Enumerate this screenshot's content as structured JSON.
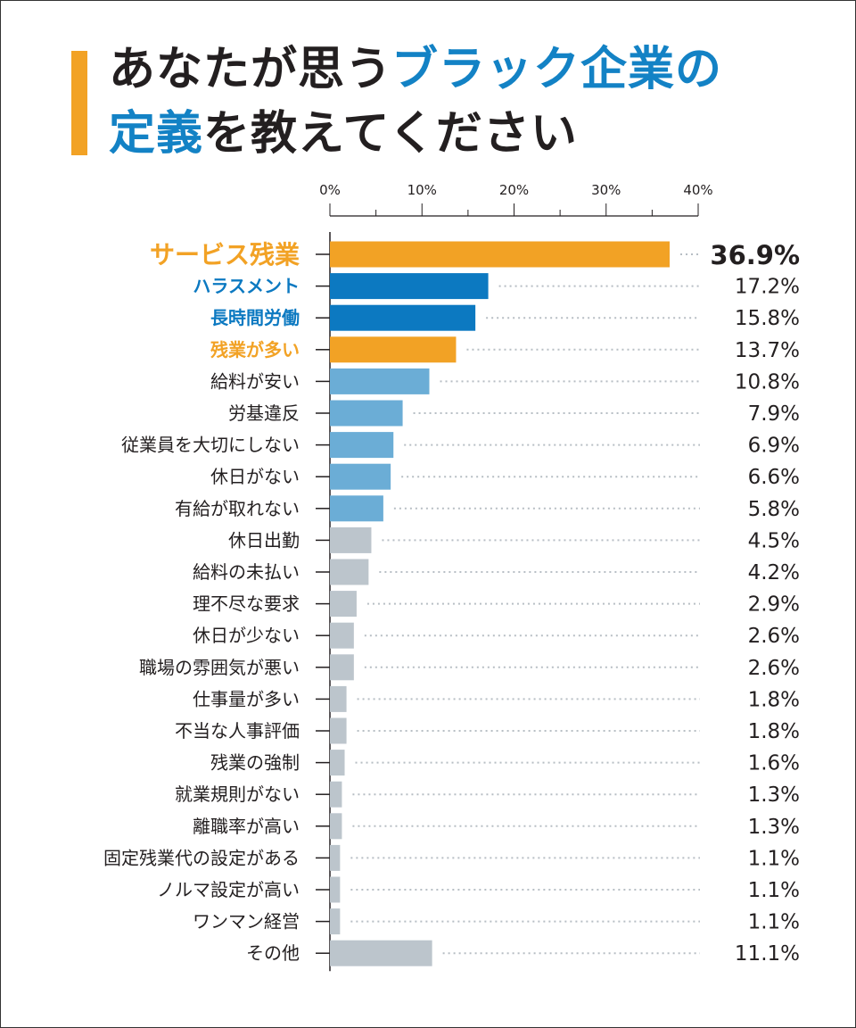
{
  "title": {
    "line1_part1": "あなたが思う",
    "line1_part2": "ブラック企業の",
    "line2_part1": "定義",
    "line2_part2": "を教えてください"
  },
  "colors": {
    "orange": "#f2a225",
    "darkblue": "#0c79c1",
    "lightblue": "#6badd6",
    "gray": "#bcc5cc",
    "text": "#231f20"
  },
  "chart_data": {
    "type": "bar",
    "orientation": "horizontal",
    "title": "あなたが思うブラック企業の定義を教えてください",
    "xlim": [
      0,
      40
    ],
    "xticks": [
      "0%",
      "10%",
      "20%",
      "30%",
      "40%"
    ],
    "categories": [
      "サービス残業",
      "ハラスメント",
      "長時間労働",
      "残業が多い",
      "給料が安い",
      "労基違反",
      "従業員を大切にしない",
      "休日がない",
      "有給が取れない",
      "休日出勤",
      "給料の未払い",
      "理不尽な要求",
      "休日が少ない",
      "職場の雰囲気が悪い",
      "仕事量が多い",
      "不当な人事評価",
      "残業の強制",
      "就業規則がない",
      "離職率が高い",
      "固定残業代の設定がある",
      "ノルマ設定が高い",
      "ワンマン経営",
      "その他"
    ],
    "values": [
      36.9,
      17.2,
      15.8,
      13.7,
      10.8,
      7.9,
      6.9,
      6.6,
      5.8,
      4.5,
      4.2,
      2.9,
      2.6,
      2.6,
      1.8,
      1.8,
      1.6,
      1.3,
      1.3,
      1.1,
      1.1,
      1.1,
      11.1
    ],
    "value_labels": [
      "36.9%",
      "17.2%",
      "15.8%",
      "13.7%",
      "10.8%",
      "7.9%",
      "6.9%",
      "6.6%",
      "5.8%",
      "4.5%",
      "4.2%",
      "2.9%",
      "2.6%",
      "2.6%",
      "1.8%",
      "1.8%",
      "1.6%",
      "1.3%",
      "1.3%",
      "1.1%",
      "1.1%",
      "1.1%",
      "11.1%"
    ],
    "bar_colors": [
      "orange",
      "darkblue",
      "darkblue",
      "orange",
      "lightblue",
      "lightblue",
      "lightblue",
      "lightblue",
      "lightblue",
      "gray",
      "gray",
      "gray",
      "gray",
      "gray",
      "gray",
      "gray",
      "gray",
      "gray",
      "gray",
      "gray",
      "gray",
      "gray",
      "gray"
    ],
    "label_colors": [
      "orange",
      "darkblue",
      "darkblue",
      "orange",
      "text",
      "text",
      "text",
      "text",
      "text",
      "text",
      "text",
      "text",
      "text",
      "text",
      "text",
      "text",
      "text",
      "text",
      "text",
      "text",
      "text",
      "text",
      "text"
    ]
  }
}
